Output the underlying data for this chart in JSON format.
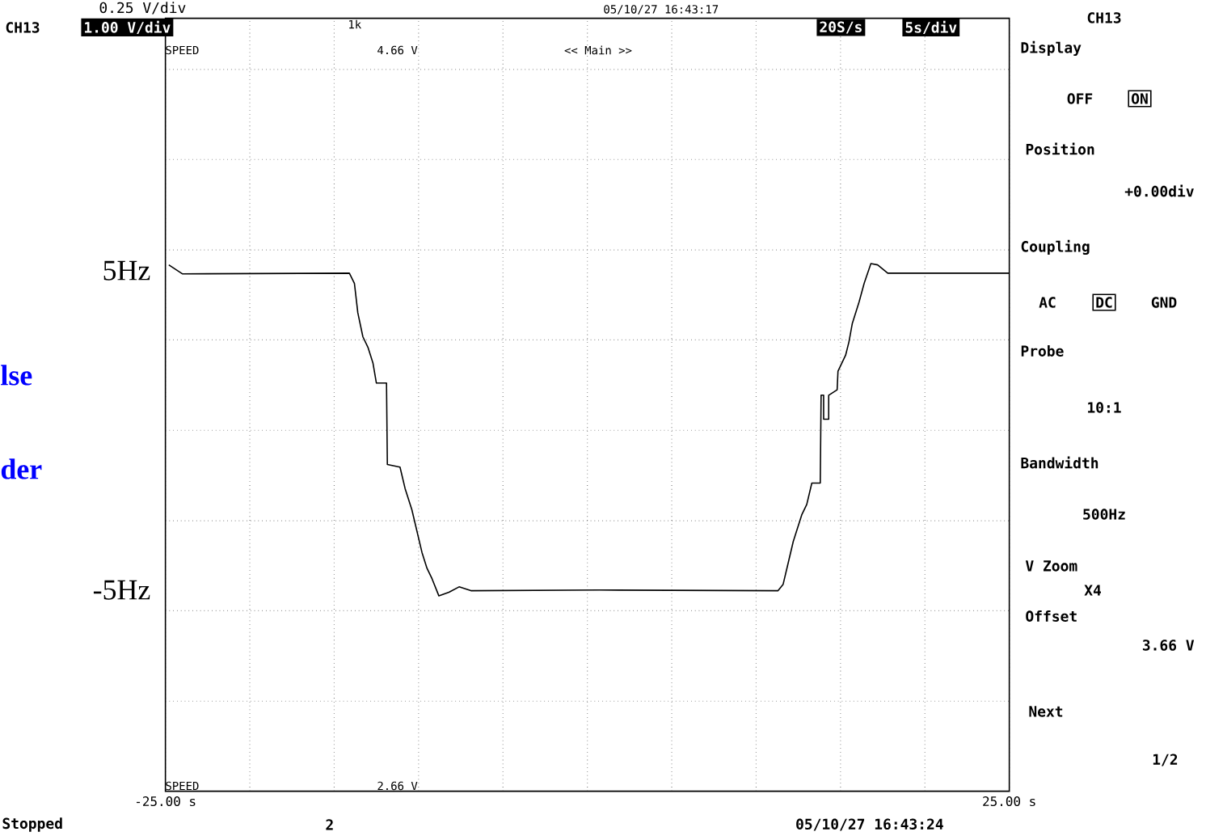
{
  "chart_data": {
    "type": "line",
    "color": "#000000",
    "grid": true,
    "xlim": [
      -25,
      25
    ],
    "ylim": [
      -11.3,
      12.9
    ],
    "xticks": [
      {
        "value": -25,
        "label": "-25.00 s"
      },
      {
        "value": -20,
        "label": null
      },
      {
        "value": -15,
        "label": null
      },
      {
        "value": -10,
        "label": null
      },
      {
        "value": -5,
        "label": null
      },
      {
        "value": 0,
        "label": null
      },
      {
        "value": 5,
        "label": null
      },
      {
        "value": 10,
        "label": null
      },
      {
        "value": 15,
        "label": null
      },
      {
        "value": 20,
        "label": null
      },
      {
        "value": 25,
        "label": "25.00 s"
      }
    ],
    "yticks": [
      {
        "value": -8.48,
        "label": null
      },
      {
        "value": -5.65,
        "label": null
      },
      {
        "value": -5,
        "label": "-5Hz"
      },
      {
        "value": -2.83,
        "label": null
      },
      {
        "value": 0,
        "label": null
      },
      {
        "value": 2.83,
        "label": null
      },
      {
        "value": 5,
        "label": "5Hz"
      },
      {
        "value": 5.65,
        "label": null
      },
      {
        "value": 8.48,
        "label": null
      },
      {
        "value": 11.3,
        "label": null
      }
    ],
    "x": [
      -24.8,
      -24.0,
      -14.1,
      -13.8,
      -13.6,
      -13.3,
      -13.0,
      -12.7,
      -12.5,
      -11.9,
      -11.85,
      -11.1,
      -10.8,
      -10.4,
      -10.1,
      -9.8,
      -9.5,
      -9.2,
      -8.8,
      -8.2,
      -7.6,
      -6.9,
      0.7,
      11.3,
      11.6,
      11.9,
      12.2,
      12.7,
      13.0,
      13.3,
      13.8,
      13.85,
      14.0,
      14.0,
      14.3,
      14.3,
      14.8,
      14.85,
      15.3,
      15.5,
      15.7,
      16.1,
      16.4,
      16.8,
      17.2,
      17.8,
      25.0
    ],
    "values": [
      5.18,
      4.9,
      4.92,
      4.6,
      3.68,
      2.93,
      2.6,
      2.1,
      1.48,
      1.48,
      -1.07,
      -1.15,
      -1.82,
      -2.48,
      -3.15,
      -3.82,
      -4.32,
      -4.65,
      -5.18,
      -5.07,
      -4.9,
      -5.02,
      -5.0,
      -5.02,
      -4.82,
      -4.15,
      -3.48,
      -2.65,
      -2.32,
      -1.65,
      -1.65,
      1.1,
      1.1,
      0.35,
      0.35,
      1.1,
      1.27,
      1.85,
      2.35,
      2.77,
      3.35,
      4.02,
      4.6,
      5.22,
      5.18,
      4.92,
      4.92
    ],
    "annotations": [
      "0.25 V/div",
      "CH13",
      "1.00 V/div",
      "1k",
      "05/10/27 16:43:17",
      "20S/s",
      "5s/div",
      "SPEED",
      "4.66 V",
      "<< Main >>",
      "SPEED",
      "2.66 V",
      "Stopped",
      "2",
      "05/10/27 16:43:24",
      "CH13",
      "Display",
      "OFF",
      "ON",
      "Position",
      "+0.00div",
      "Coupling",
      "AC",
      "DC",
      "GND",
      "Probe",
      "10:1",
      "Bandwidth",
      "500Hz",
      "V Zoom",
      "X4",
      "Offset",
      "3.66 V",
      "Next",
      "1/2",
      "lse",
      "der"
    ]
  }
}
